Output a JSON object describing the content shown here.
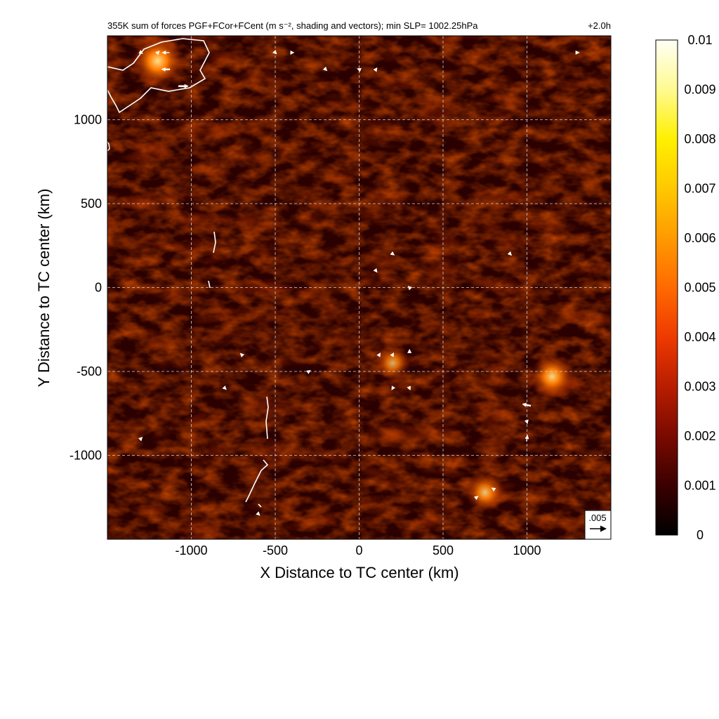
{
  "chart_data": {
    "type": "heatmap",
    "title": "355K sum of forces PGF+FCor+FCent (m s⁻², shading and vectors); min SLP= 1002.25hPa",
    "time_label": "+2.0h",
    "xlabel": "X Distance to TC center (km)",
    "ylabel": "Y Distance to TC center (km)",
    "xlim": [
      -1500,
      1500
    ],
    "ylim": [
      -1500,
      1500
    ],
    "xticks": [
      -1000,
      -500,
      0,
      500,
      1000
    ],
    "yticks": [
      -1000,
      -500,
      0,
      500,
      1000
    ],
    "grid": true,
    "colorbar": {
      "min": 0,
      "max": 0.01,
      "ticks": [
        "0",
        "0.001",
        "0.002",
        "0.003",
        "0.004",
        "0.005",
        "0.006",
        "0.007",
        "0.008",
        "0.009",
        "0.01"
      ],
      "colormap": [
        "#000000",
        "#3a0000",
        "#7a0a00",
        "#b81d00",
        "#ee3a00",
        "#ff6a00",
        "#ff9a00",
        "#ffc800",
        "#fff000",
        "#fffa90",
        "#fffff5"
      ]
    },
    "reference_vector": {
      "label": ".005",
      "value": 0.005
    },
    "hotspots": [
      {
        "x": 200,
        "y": -450,
        "value": 0.004
      },
      {
        "x": 1150,
        "y": -530,
        "value": 0.006
      },
      {
        "x": 750,
        "y": -1220,
        "value": 0.005
      },
      {
        "x": -1200,
        "y": 1350,
        "value": 0.008
      }
    ],
    "vectors": [
      {
        "x": -1300,
        "y": 1400,
        "u": 0.0005,
        "v": -0.0003
      },
      {
        "x": -1200,
        "y": 1400,
        "u": 0.0008,
        "v": 0.0008
      },
      {
        "x": -1150,
        "y": 1400,
        "u": -0.0022,
        "v": 0
      },
      {
        "x": -1150,
        "y": 1300,
        "u": -0.0025,
        "v": 0
      },
      {
        "x": -1050,
        "y": 1200,
        "u": 0.003,
        "v": 0
      },
      {
        "x": -500,
        "y": 1400,
        "u": 0.0003,
        "v": -0.0003
      },
      {
        "x": -400,
        "y": 1400,
        "u": 0.0003,
        "v": 0
      },
      {
        "x": -200,
        "y": 1300,
        "u": 0.0004,
        "v": -0.0004
      },
      {
        "x": 0,
        "y": 1300,
        "u": -0.0005,
        "v": 0.0002
      },
      {
        "x": 100,
        "y": 1300,
        "u": 0.0003,
        "v": 0.0004
      },
      {
        "x": 1300,
        "y": 1400,
        "u": 0.0002,
        "v": 0
      },
      {
        "x": 100,
        "y": 100,
        "u": 0.0003,
        "v": -0.0004
      },
      {
        "x": 200,
        "y": 200,
        "u": 0.0004,
        "v": -0.0003
      },
      {
        "x": 300,
        "y": 0,
        "u": -0.0004,
        "v": 0.0004
      },
      {
        "x": 900,
        "y": 200,
        "u": 0.0003,
        "v": -0.0003
      },
      {
        "x": 120,
        "y": -400,
        "u": 0.0003,
        "v": 0.0005
      },
      {
        "x": 200,
        "y": -400,
        "u": 0.0004,
        "v": 0.0007
      },
      {
        "x": 300,
        "y": -380,
        "u": 0,
        "v": 0.0008
      },
      {
        "x": 200,
        "y": -600,
        "u": -0.0003,
        "v": -0.0005
      },
      {
        "x": 300,
        "y": -600,
        "u": 0.0002,
        "v": -0.0005
      },
      {
        "x": 1000,
        "y": -700,
        "u": -0.0025,
        "v": 0.0005
      },
      {
        "x": 1000,
        "y": -800,
        "u": 0.0002,
        "v": -0.0008
      },
      {
        "x": 1000,
        "y": -900,
        "u": 0.0003,
        "v": 0.0018
      },
      {
        "x": 800,
        "y": -1200,
        "u": -0.0005,
        "v": 0.0003
      },
      {
        "x": 700,
        "y": -1250,
        "u": 0.0004,
        "v": 0.0003
      },
      {
        "x": -600,
        "y": -1350,
        "u": 0.0003,
        "v": -0.0003
      },
      {
        "x": -1300,
        "y": -900,
        "u": 0.0003,
        "v": 0.0003
      },
      {
        "x": -800,
        "y": -600,
        "u": 0.0003,
        "v": -0.0003
      },
      {
        "x": -300,
        "y": -500,
        "u": 0.0003,
        "v": 0.0002
      },
      {
        "x": -700,
        "y": -400,
        "u": -0.0003,
        "v": 0.0003
      }
    ]
  }
}
